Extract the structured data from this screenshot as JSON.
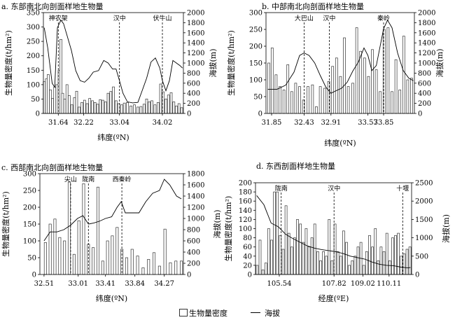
{
  "legend": {
    "bar_label": "生物量密度",
    "line_label": "海拔"
  },
  "chart_data": [
    {
      "type": "bar",
      "title": "a. 东部南北向剖面样地生物量",
      "xlabel": "纬度(ºN)",
      "ylabel": "生物量密度(t/hm²)",
      "y2label": "海拔(m)",
      "xticks": [
        "31.64",
        "32.22",
        "33.04",
        "34.02"
      ],
      "ylim": [
        0,
        350
      ],
      "yticks": [
        0,
        50,
        100,
        150,
        200,
        250,
        300,
        350
      ],
      "y2lim": [
        0,
        2000
      ],
      "y2ticks": [
        0,
        200,
        400,
        600,
        800,
        1000,
        1200,
        1400,
        1600,
        1800,
        2000
      ],
      "x_range": [
        31.3,
        34.5
      ],
      "bars": {
        "x": [
          31.32,
          31.37,
          31.41,
          31.46,
          31.51,
          31.56,
          31.61,
          31.66,
          31.7,
          31.74,
          31.79,
          31.84,
          31.89,
          31.95,
          32.01,
          32.06,
          32.12,
          32.18,
          32.24,
          32.3,
          32.36,
          32.42,
          32.48,
          32.54,
          32.6,
          32.66,
          32.72,
          32.78,
          32.84,
          32.9,
          32.96,
          33.02,
          33.09,
          33.15,
          33.22,
          33.3,
          33.38,
          33.46,
          33.53,
          33.6,
          33.66,
          33.72,
          33.78,
          33.85,
          33.92,
          33.98,
          34.04,
          34.1,
          34.16,
          34.22,
          34.28,
          34.34,
          34.4,
          34.46
        ],
        "values": [
          110,
          120,
          135,
          82,
          52,
          92,
          100,
          150,
          257,
          70,
          50,
          100,
          62,
          30,
          55,
          77,
          22,
          38,
          46,
          34,
          52,
          44,
          38,
          32,
          48,
          46,
          40,
          70,
          76,
          92,
          44,
          34,
          30,
          36,
          38,
          26,
          30,
          22,
          24,
          32,
          50,
          40,
          44,
          30,
          38,
          102,
          75,
          50,
          64,
          72,
          40,
          26,
          34,
          20
        ]
      },
      "line": {
        "x": [
          31.32,
          31.4,
          31.5,
          31.56,
          31.62,
          31.7,
          31.76,
          31.84,
          31.94,
          32.04,
          32.14,
          32.24,
          32.34,
          32.44,
          32.56,
          32.68,
          32.78,
          32.88,
          32.96,
          33.04,
          33.12,
          33.22,
          33.34,
          33.46,
          33.56,
          33.66,
          33.76,
          33.86,
          33.96,
          34.02,
          34.1,
          34.18,
          34.26,
          34.34,
          34.42,
          34.48
        ],
        "values": [
          1700,
          1300,
          600,
          520,
          1700,
          1850,
          1780,
          1550,
          1250,
          850,
          650,
          620,
          700,
          820,
          850,
          1050,
          1000,
          880,
          880,
          650,
          400,
          230,
          210,
          220,
          460,
          700,
          1020,
          1100,
          900,
          650,
          450,
          650,
          1050,
          1000,
          950,
          900
        ]
      },
      "vlines": [
        {
          "label": "神农架",
          "x": 31.64
        },
        {
          "label": "汉中",
          "x": 33.04
        },
        {
          "label": "伏牛山",
          "x": 34.02
        }
      ]
    },
    {
      "type": "bar",
      "title": "b. 中部南北向剖面样地生物量",
      "xlabel": "纬度(ºN)",
      "ylabel": "生物量密度(t/hm²)",
      "y2label": "海拔(m)",
      "xticks": [
        "31.85",
        "32.43",
        "32.91",
        "33.57",
        "33.85"
      ],
      "ylim": [
        0,
        300
      ],
      "yticks": [
        0,
        50,
        100,
        150,
        200,
        250,
        300
      ],
      "y2lim": [
        0,
        2000
      ],
      "y2ticks": [
        0,
        200,
        400,
        600,
        800,
        1000,
        1200,
        1400,
        1600,
        1800,
        2000
      ],
      "x_range": [
        31.75,
        34.4
      ],
      "bars": {
        "x": [
          31.8,
          31.86,
          31.93,
          32.0,
          32.07,
          32.14,
          32.21,
          32.28,
          32.35,
          32.42,
          32.5,
          32.58,
          32.65,
          32.72,
          32.8,
          32.87,
          32.94,
          33.01,
          33.08,
          33.15,
          33.22,
          33.3,
          33.37,
          33.44,
          33.51,
          33.58,
          33.65,
          33.72,
          33.79,
          33.86,
          33.93,
          34.0,
          34.07,
          34.14,
          34.21,
          34.28,
          34.35
        ],
        "values": [
          150,
          195,
          115,
          80,
          70,
          145,
          65,
          90,
          80,
          40,
          80,
          85,
          20,
          80,
          75,
          95,
          140,
          165,
          110,
          225,
          80,
          90,
          255,
          185,
          165,
          110,
          190,
          130,
          65,
          250,
          255,
          65,
          160,
          70,
          230,
          100,
          105
        ]
      },
      "line": {
        "x": [
          31.78,
          31.95,
          32.1,
          32.25,
          32.35,
          32.43,
          32.52,
          32.62,
          32.72,
          32.82,
          32.91,
          33.0,
          33.1,
          33.2,
          33.3,
          33.4,
          33.5,
          33.57,
          33.64,
          33.72,
          33.8,
          33.85,
          33.92,
          34.0,
          34.1,
          34.2,
          34.3,
          34.38
        ],
        "values": [
          480,
          480,
          560,
          820,
          1150,
          1200,
          1150,
          1000,
          750,
          520,
          400,
          450,
          500,
          620,
          840,
          1020,
          1300,
          1150,
          850,
          950,
          1400,
          1680,
          1850,
          1700,
          1200,
          850,
          700,
          650
        ]
      },
      "vlines": [
        {
          "label": "大巴山",
          "x": 32.43
        },
        {
          "label": "汉中",
          "x": 32.88
        },
        {
          "label": "秦岭",
          "x": 33.85
        }
      ]
    },
    {
      "type": "bar",
      "title": "c. 西部南北向剖面样地生物量",
      "xlabel": "纬度(ºN)",
      "ylabel": "生物量密度(t/hm²)",
      "y2label": "海拔(m)",
      "xticks": [
        "32.51",
        "33.01",
        "33.41",
        "33.84",
        "34.27"
      ],
      "ylim": [
        0,
        300
      ],
      "yticks": [
        0,
        50,
        100,
        150,
        200,
        250,
        300
      ],
      "y2lim": [
        0,
        1800
      ],
      "y2ticks": [
        0,
        200,
        400,
        600,
        800,
        1000,
        1200,
        1400,
        1600,
        1800
      ],
      "x_range": [
        32.45,
        34.55
      ],
      "bars": {
        "x": [
          32.53,
          32.6,
          32.67,
          32.74,
          32.81,
          32.88,
          32.95,
          33.02,
          33.09,
          33.16,
          33.23,
          33.3,
          33.37,
          33.44,
          33.51,
          33.58,
          33.65,
          33.72,
          33.8,
          33.88,
          33.96,
          34.04,
          34.12,
          34.2,
          34.28,
          34.36,
          34.44,
          34.52
        ],
        "values": [
          95,
          150,
          165,
          110,
          100,
          275,
          60,
          160,
          270,
          90,
          80,
          260,
          40,
          100,
          115,
          140,
          75,
          50,
          75,
          55,
          20,
          45,
          65,
          25,
          135,
          35,
          40,
          40
        ]
      },
      "line": {
        "x": [
          32.51,
          32.6,
          32.7,
          32.8,
          32.9,
          33.0,
          33.08,
          33.16,
          33.24,
          33.32,
          33.41,
          33.5,
          33.58,
          33.64,
          33.7,
          33.8,
          33.9,
          34.0,
          34.1,
          34.2,
          34.27,
          34.35,
          34.45,
          34.52
        ],
        "values": [
          600,
          760,
          760,
          800,
          880,
          1000,
          1050,
          900,
          920,
          950,
          1000,
          1030,
          1200,
          1300,
          1100,
          1100,
          1100,
          1300,
          1450,
          1500,
          1700,
          1600,
          1400,
          1350
        ]
      },
      "vlines": [
        {
          "label": "尖山",
          "x": 32.9
        },
        {
          "label": "陇南",
          "x": 33.16
        },
        {
          "label": "西秦岭",
          "x": 33.65
        }
      ]
    },
    {
      "type": "bar",
      "title": "d. 东西剖面样地生物量",
      "xlabel": "经度(ºE)",
      "ylabel": "生物量密度(t/hm²)",
      "y2label": "海拔(m)",
      "xticks": [
        "105.54",
        "107.82",
        "109.02",
        "110.11"
      ],
      "ylim": [
        0,
        200
      ],
      "yticks": [
        0,
        20,
        40,
        60,
        80,
        100,
        120,
        140,
        160,
        180,
        200
      ],
      "y2lim": [
        0,
        2500
      ],
      "y2ticks": [
        0,
        500,
        1000,
        1500,
        2000,
        2500
      ],
      "x_range": [
        104.55,
        111.05
      ],
      "bars": {
        "x": [
          104.62,
          104.74,
          104.86,
          104.98,
          105.1,
          105.22,
          105.34,
          105.46,
          105.58,
          105.7,
          105.82,
          105.94,
          106.06,
          106.18,
          106.3,
          106.42,
          106.54,
          106.66,
          106.78,
          106.9,
          107.02,
          107.14,
          107.26,
          107.38,
          107.5,
          107.62,
          107.74,
          107.86,
          107.98,
          108.1,
          108.22,
          108.34,
          108.46,
          108.58,
          108.7,
          108.82,
          108.94,
          109.06,
          109.18,
          109.3,
          109.42,
          109.54,
          109.66,
          109.78,
          109.9,
          110.02,
          110.14,
          110.26,
          110.38,
          110.5,
          110.62,
          110.74,
          110.86,
          110.98
        ],
        "values": [
          20,
          75,
          10,
          25,
          100,
          75,
          180,
          180,
          85,
          55,
          150,
          90,
          60,
          80,
          120,
          110,
          70,
          100,
          60,
          80,
          110,
          50,
          30,
          50,
          40,
          120,
          30,
          110,
          50,
          40,
          95,
          70,
          20,
          30,
          40,
          60,
          70,
          20,
          50,
          85,
          60,
          100,
          30,
          60,
          50,
          90,
          30,
          80,
          85,
          90,
          40,
          45,
          55,
          60
        ]
      },
      "line": {
        "x": [
          104.6,
          104.9,
          105.2,
          105.5,
          105.8,
          106.1,
          106.4,
          106.7,
          107.0,
          107.3,
          107.6,
          107.9,
          108.2,
          108.5,
          108.8,
          109.1,
          109.4,
          109.7,
          110.0,
          110.3,
          110.6,
          110.9,
          111.0
        ],
        "values": [
          2150,
          1900,
          1400,
          1300,
          1100,
          980,
          880,
          780,
          720,
          680,
          650,
          620,
          570,
          500,
          460,
          420,
          340,
          280,
          250,
          240,
          200,
          180,
          190
        ]
      },
      "vlines": [
        {
          "label": "陇南",
          "x": 105.62
        },
        {
          "label": "汉中",
          "x": 107.82
        },
        {
          "label": "十堰",
          "x": 110.68
        }
      ]
    }
  ]
}
